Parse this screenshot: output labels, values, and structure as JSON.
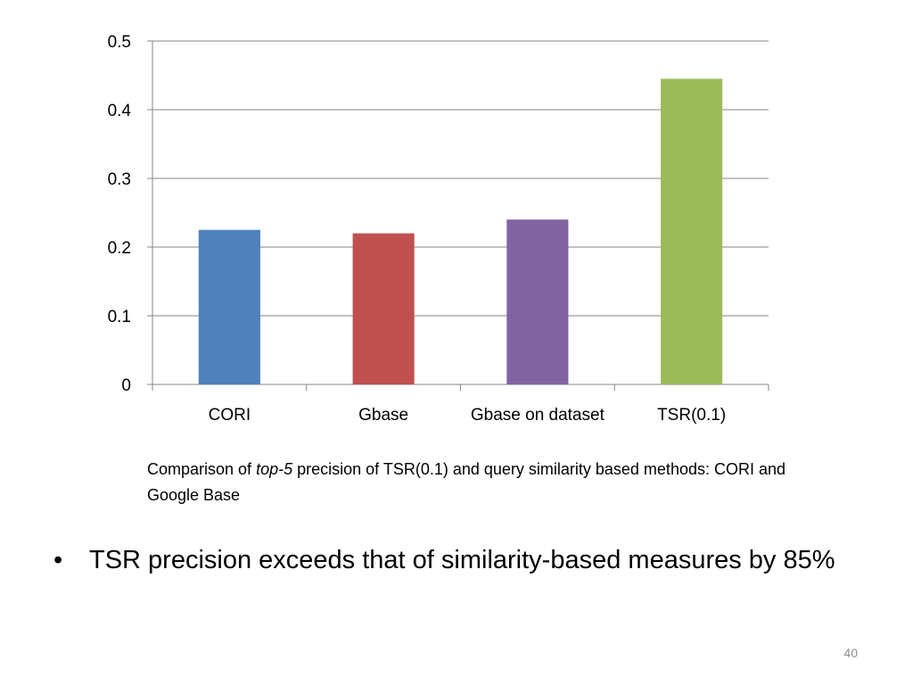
{
  "chart_data": {
    "type": "bar",
    "categories": [
      "CORI",
      "Gbase",
      "Gbase on dataset",
      "TSR(0.1)"
    ],
    "values": [
      0.225,
      0.22,
      0.24,
      0.445
    ],
    "colors": [
      "#4F81BD",
      "#C0504D",
      "#8064A2",
      "#9BBB59"
    ],
    "ylim": [
      0,
      0.5
    ],
    "yticks": [
      "0",
      "0.1",
      "0.2",
      "0.3",
      "0.4",
      "0.5"
    ],
    "grid": true,
    "legend": "none"
  },
  "caption": {
    "before": "Comparison of ",
    "emph": "top-5",
    "after": " precision of TSR(0.1) and query similarity based methods: CORI and Google Base"
  },
  "bullets": [
    {
      "marker": "•",
      "text": "TSR precision exceeds that of similarity-based measures by 85%"
    }
  ],
  "slide_number": "40"
}
